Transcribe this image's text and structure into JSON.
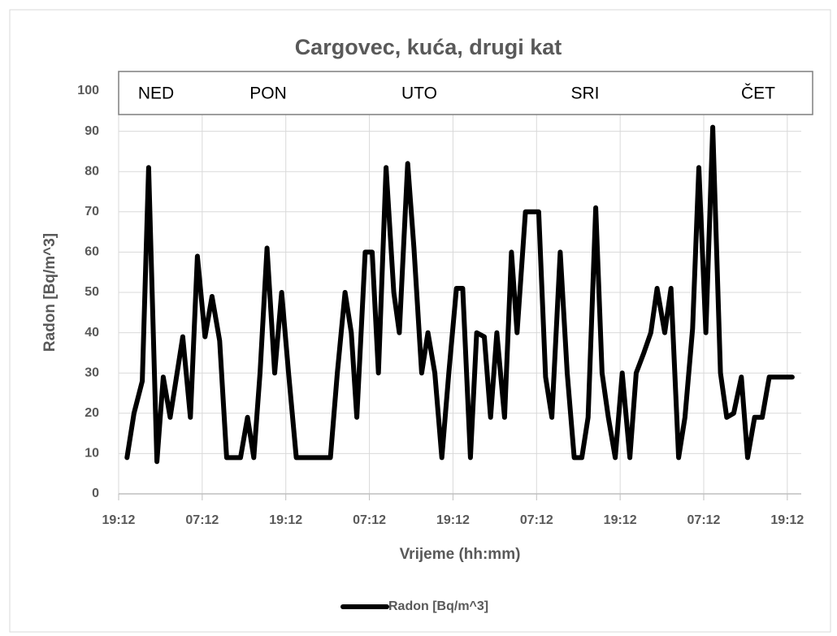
{
  "chart_data": {
    "type": "line",
    "title": "Cargovec, kuća, drugi kat",
    "x_label": "Vrijeme (hh:mm)",
    "y_label": "Radon [Bq/m^3]",
    "annotations": [
      "NED",
      "PON",
      "UTO",
      "SRI",
      "ČET"
    ],
    "x": [
      1.2,
      2.2,
      3.4,
      4.3,
      5.5,
      6.4,
      7.4,
      9.2,
      10.3,
      11.3,
      12.4,
      13.4,
      14.5,
      15.5,
      16.7,
      17.5,
      18.5,
      19.4,
      20.3,
      21.3,
      22.4,
      23.4,
      24.4,
      25.5,
      26.4,
      27.3,
      29.4,
      30.4,
      31.4,
      32.5,
      33.4,
      34.2,
      35.4,
      36.4,
      37.3,
      38.4,
      39.5,
      40.3,
      41.5,
      42.4,
      43.5,
      44.4,
      45.4,
      46.4,
      47.4,
      48.5,
      49.4,
      50.5,
      51.4,
      52.5,
      53.4,
      54.3,
      55.4,
      56.4,
      57.2,
      58.4,
      59.3,
      60.3,
      61.3,
      62.2,
      63.4,
      64.4,
      65.4,
      66.5,
      67.4,
      68.5,
      69.4,
      70.3,
      71.3,
      72.3,
      73.4,
      74.3,
      75.4,
      76.4,
      77.3,
      78.4,
      79.3,
      80.4,
      81.3,
      82.4,
      83.3,
      84.3,
      85.3,
      86.4,
      87.3,
      88.3,
      89.4,
      90.3,
      91.3,
      92.4,
      93.4,
      94.7,
      96.7
    ],
    "series": [
      {
        "name": "Radon [Bq/m^3]",
        "color": "#000000",
        "values": [
          9,
          20,
          28,
          81,
          8,
          29,
          19,
          39,
          19,
          59,
          39,
          49,
          38,
          9,
          9,
          9,
          19,
          9,
          30,
          61,
          30,
          50,
          30,
          9,
          9,
          9,
          9,
          9,
          30,
          50,
          40,
          19,
          60,
          60,
          30,
          81,
          50,
          40,
          82,
          61,
          30,
          40,
          30,
          9,
          30,
          51,
          51,
          9,
          40,
          39,
          19,
          40,
          19,
          60,
          40,
          70,
          70,
          70,
          29,
          19,
          60,
          30,
          9,
          9,
          19,
          71,
          30,
          19,
          9,
          30,
          9,
          30,
          35,
          40,
          51,
          40,
          51,
          9,
          19,
          41,
          81,
          40,
          91,
          30,
          19,
          20,
          29,
          9,
          19,
          19,
          29,
          29,
          29
        ]
      }
    ],
    "xlim": [
      0,
      98
    ],
    "xticks": [
      {
        "value": 0,
        "label": "19:12"
      },
      {
        "value": 12,
        "label": "07:12"
      },
      {
        "value": 24,
        "label": "19:12"
      },
      {
        "value": 36,
        "label": "07:12"
      },
      {
        "value": 48,
        "label": "19:12"
      },
      {
        "value": 60,
        "label": "07:12"
      },
      {
        "value": 72,
        "label": "19:12"
      },
      {
        "value": 84,
        "label": "07:12"
      },
      {
        "value": 96,
        "label": "19:12"
      }
    ],
    "ylim": [
      0,
      100
    ],
    "yticks": [
      0,
      10,
      20,
      30,
      40,
      50,
      60,
      70,
      80,
      90,
      100
    ],
    "grid": true,
    "legend": "bottom"
  }
}
